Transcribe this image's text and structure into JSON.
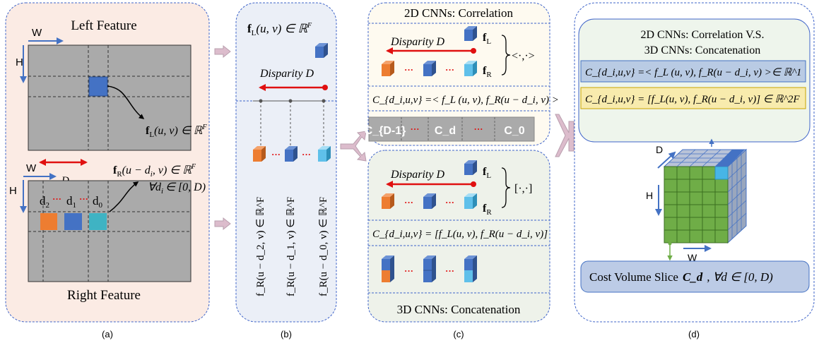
{
  "panel_a": {
    "left_feature_title": "Left Feature",
    "right_feature_title": "Right Feature",
    "w_label": "W",
    "h_label": "H",
    "fL_label": "f",
    "fL_sub": "L",
    "fL_rest": "(u, v) ∈ ℝ",
    "fL_sup": "F",
    "fR_label": "f",
    "fR_sub": "R",
    "fR_rest": "(u − d",
    "fR_sub2": "i",
    "fR_rest2": ", v) ∈ ℝ",
    "fR_sup": "F",
    "forall_text": "∀d",
    "forall_sub": "i",
    "forall_rest": "∈ [0, D)",
    "d_label": "D",
    "d2": "d",
    "d2_sub": "2",
    "d1": "d",
    "d1_sub": "1",
    "d0": "d",
    "d0_sub": "0",
    "dots": "···",
    "caption": "(a)"
  },
  "panel_b": {
    "fL_label": "f",
    "fL_sub": "L",
    "fL_rest": "(u, v) ∈ ℝ",
    "fL_sup": "F",
    "disparity_label": "Disparity D",
    "vertical_labels": [
      "f_R(u − d_2, v) ∈ ℝ^F",
      "f_R(u − d_1, v) ∈ ℝ^F",
      "f_R(u − d_0, v) ∈ ℝ^F"
    ],
    "dots": "···",
    "caption": "(b)"
  },
  "panel_c": {
    "top_title": "2D CNNs: Correlation",
    "bottom_title": "3D CNNs: Concatenation",
    "disparity_label": "Disparity D",
    "fL": "f",
    "fL_sub": "L",
    "fR": "f",
    "fR_sub": "R",
    "corr_op": "<·,·>",
    "concat_op": "[·,·]",
    "corr_formula": "C_{d_i,u,v} =< f_L (u, v), f_R(u − d_i, v) >",
    "concat_formula": "C_{d_i,u,v} = [f_L(u, v), f_R(u − d_i, v)]",
    "slices": [
      "C_{D-1}",
      "···",
      "C_d",
      "···",
      "C_0"
    ],
    "dots": "···",
    "caption": "(c)"
  },
  "panel_d": {
    "title_line1": "2D CNNs: Correlation V.S.",
    "title_line2": "3D CNNs: Concatenation",
    "corr_formula": "C_{d_i,u,v} =< f_L (u, v), f_R(u − d_i, v) >∈ ℝ^1",
    "concat_formula": "C_{d_i,u,v} = [f_L(u, v), f_R(u − d_i, v)] ∈ ℝ^2F",
    "d_axis": "D",
    "h_axis": "H",
    "w_axis": "W",
    "slice_label": "Cost Volume Slice",
    "slice_symbol": "C_d",
    "slice_range": ", ∀d ∈ [0, D)",
    "caption": "(d)"
  },
  "colors": {
    "panel_a_bg": "#fbebe4",
    "panel_b_bg": "#ebeff7",
    "panel_c_top_bg": "#fefaf0",
    "panel_c_bottom_bg": "#eef2ea",
    "panel_d_bg": "#ffffff",
    "panel_d_inner_bg": "#eef5ec",
    "corr_formula_bg": "#b9cbe4",
    "concat_formula_bg": "#f8ebad",
    "slice_box_bg": "#bccbe6",
    "feature_gray": "#aaaaaa",
    "border_blue": "#3f64c9",
    "arrow_red": "#e01010",
    "arrow_blue": "#4472c4",
    "cube_green": "#6fad47",
    "cube_cyan": "#47b5e6",
    "cube_orange": "#ed7d31",
    "cube_blue": "#4472c4",
    "cube_teal": "#3fb3c3",
    "connector_pink": "#dcbccc"
  }
}
